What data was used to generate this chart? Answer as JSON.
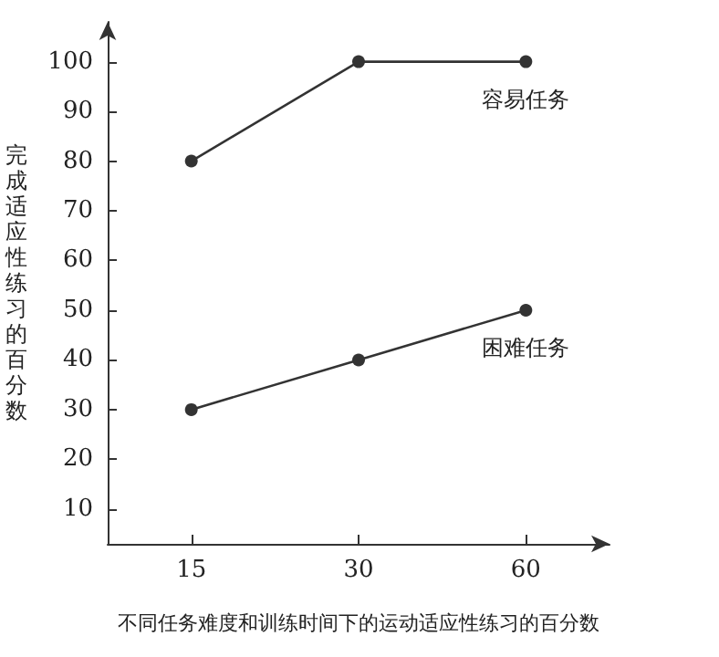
{
  "chart_data": {
    "type": "line",
    "xlabel": "不同任务难度和训练时间下的运动适应性练习的百分数",
    "ylabel": "完成适应性练习的百分数",
    "categories": [
      "15",
      "30",
      "60"
    ],
    "series": [
      {
        "name": "容易任务",
        "color": "#333333",
        "values": [
          80,
          100,
          100
        ]
      },
      {
        "name": "困难任务",
        "color": "#333333",
        "values": [
          30,
          40,
          50
        ]
      }
    ],
    "ylim": [
      3,
      108
    ],
    "yticks": [
      10,
      20,
      30,
      40,
      50,
      60,
      70,
      80,
      90,
      100
    ],
    "grid": false,
    "legend": false,
    "marker": "circle",
    "line_style": "solid"
  }
}
